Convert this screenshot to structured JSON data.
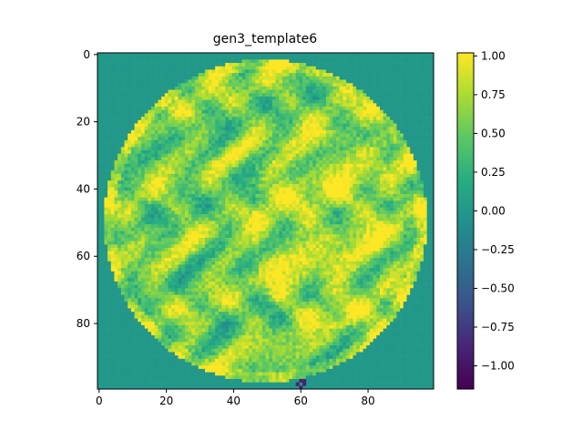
{
  "chart_data": {
    "type": "heatmap",
    "title": "gen3_template6",
    "xlabel": "",
    "ylabel": "",
    "grid_size": [
      100,
      100
    ],
    "xlim": [
      -0.5,
      99.5
    ],
    "ylim": [
      99.5,
      -0.5
    ],
    "x_ticks": [
      "0",
      "20",
      "40",
      "60",
      "80"
    ],
    "y_ticks": [
      "0",
      "20",
      "40",
      "60",
      "80"
    ],
    "colormap": "viridis",
    "value_range": [
      -1.15,
      1.02
    ],
    "background_value": 0.0,
    "disc": {
      "center_row": 49.5,
      "center_col": 49.5,
      "radius": 48,
      "mean_value": 0.55
    },
    "colorbar": {
      "ticks": [
        "1.00",
        "0.75",
        "0.50",
        "0.25",
        "0.00",
        "−0.25",
        "−0.50",
        "−0.75",
        "−1.00"
      ],
      "tick_values": [
        1.0,
        0.75,
        0.5,
        0.25,
        0.0,
        -0.25,
        -0.5,
        -0.75,
        -1.0
      ]
    }
  }
}
